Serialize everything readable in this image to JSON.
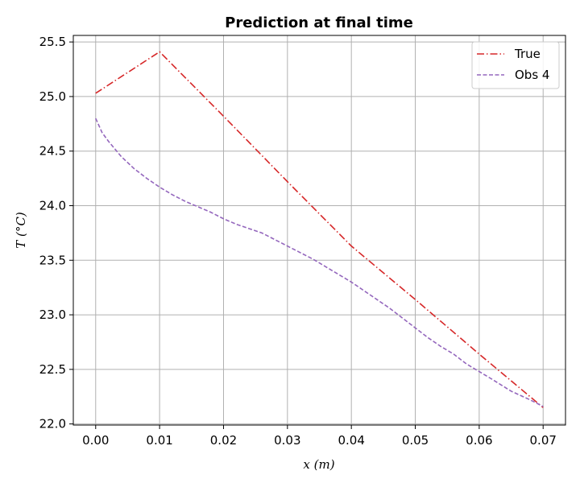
{
  "chart_data": {
    "type": "line",
    "title": "Prediction at final time",
    "xlabel": "x (m)",
    "ylabel": "T (°C)",
    "xlim": [
      -0.0035,
      0.0735
    ],
    "ylim": [
      21.99,
      25.56
    ],
    "xticks": [
      0.0,
      0.01,
      0.02,
      0.03,
      0.04,
      0.05,
      0.06,
      0.07
    ],
    "xtick_labels": [
      "0.00",
      "0.01",
      "0.02",
      "0.03",
      "0.04",
      "0.05",
      "0.06",
      "0.07"
    ],
    "yticks": [
      22.0,
      22.5,
      23.0,
      23.5,
      24.0,
      24.5,
      25.0,
      25.5
    ],
    "ytick_labels": [
      "22.0",
      "22.5",
      "23.0",
      "23.5",
      "24.0",
      "24.5",
      "25.0",
      "25.5"
    ],
    "grid": true,
    "legend_position": "top-right",
    "series": [
      {
        "name": "True",
        "color": "#d62728",
        "dash": "dashdot",
        "x": [
          0.0,
          0.01,
          0.02,
          0.03,
          0.04,
          0.05,
          0.06,
          0.07
        ],
        "y": [
          25.03,
          25.41,
          24.82,
          24.22,
          23.63,
          23.14,
          22.64,
          22.15
        ]
      },
      {
        "name": "Obs 4",
        "color": "#9467bd",
        "dash": "dashed",
        "x": [
          0.0,
          0.001,
          0.002,
          0.004,
          0.006,
          0.008,
          0.01,
          0.012,
          0.014,
          0.016,
          0.018,
          0.02,
          0.022,
          0.024,
          0.026,
          0.028,
          0.03,
          0.032,
          0.034,
          0.036,
          0.038,
          0.04,
          0.042,
          0.044,
          0.046,
          0.048,
          0.05,
          0.052,
          0.054,
          0.056,
          0.058,
          0.06,
          0.062,
          0.065,
          0.068,
          0.07
        ],
        "y": [
          24.8,
          24.67,
          24.59,
          24.45,
          24.34,
          24.25,
          24.17,
          24.1,
          24.04,
          23.99,
          23.94,
          23.88,
          23.83,
          23.79,
          23.75,
          23.69,
          23.63,
          23.57,
          23.51,
          23.44,
          23.37,
          23.3,
          23.22,
          23.14,
          23.06,
          22.97,
          22.88,
          22.79,
          22.71,
          22.64,
          22.55,
          22.48,
          22.41,
          22.3,
          22.22,
          22.16
        ]
      }
    ]
  }
}
